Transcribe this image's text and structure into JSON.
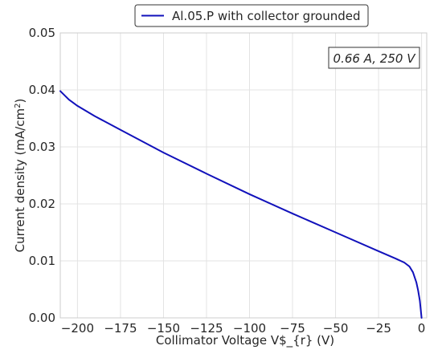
{
  "chart_data": {
    "type": "line",
    "xlabel": "Collimator Voltage V$_{r} (V)",
    "ylabel_main": "Current density (mA/cm",
    "ylabel_sup": "2",
    "ylabel_end": ")",
    "xlim": [
      -210,
      3
    ],
    "ylim": [
      0,
      0.05
    ],
    "xticks": [
      -200,
      -175,
      -150,
      -125,
      -100,
      -75,
      -50,
      -25,
      0
    ],
    "yticks": [
      0.0,
      0.01,
      0.02,
      0.03,
      0.04,
      0.05
    ],
    "xtick_labels": [
      "−200",
      "−175",
      "−150",
      "−125",
      "−100",
      "−75",
      "−50",
      "−25",
      "0"
    ],
    "ytick_labels": [
      "0.00",
      "0.01",
      "0.02",
      "0.03",
      "0.04",
      "0.05"
    ],
    "grid": true,
    "legend_position": "top-center",
    "annotation": "0.66 A, 250 V",
    "series": [
      {
        "name": "Al.05.P with collector grounded",
        "color": "#1111bb",
        "x": [
          -210,
          -205,
          -200,
          -190,
          -175,
          -150,
          -125,
          -100,
          -75,
          -50,
          -25,
          -15,
          -10,
          -7,
          -5,
          -3,
          -2,
          -1,
          -0.5,
          0
        ],
        "y": [
          0.0398,
          0.0383,
          0.0372,
          0.0354,
          0.033,
          0.029,
          0.0253,
          0.0217,
          0.0183,
          0.015,
          0.0117,
          0.0104,
          0.0097,
          0.009,
          0.008,
          0.0062,
          0.0048,
          0.003,
          0.0015,
          0.0
        ]
      }
    ]
  }
}
